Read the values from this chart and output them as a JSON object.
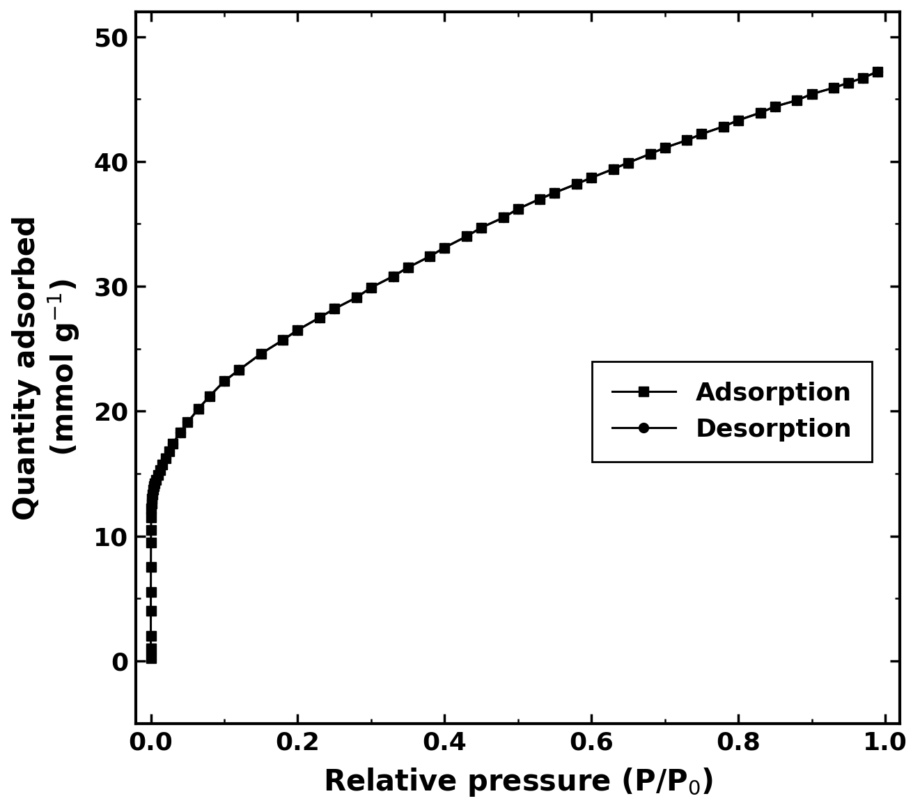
{
  "xlabel": "Relative pressure (P/P$_0$)",
  "ylabel": "Quantity adsorbed\n(mmol g$^{-1}$)",
  "xlim": [
    -0.02,
    1.02
  ],
  "ylim": [
    -5,
    52
  ],
  "xticks": [
    0.0,
    0.2,
    0.4,
    0.6,
    0.8,
    1.0
  ],
  "yticks": [
    0,
    10,
    20,
    30,
    40,
    50
  ],
  "background_color": "#ffffff",
  "line_color": "#000000",
  "adsorption_x": [
    1e-06,
    5e-06,
    1e-05,
    3e-05,
    5e-05,
    0.0001,
    0.0002,
    0.0003,
    0.0005,
    0.0008,
    0.001,
    0.0015,
    0.002,
    0.003,
    0.004,
    0.005,
    0.007,
    0.01,
    0.013,
    0.016,
    0.02,
    0.025,
    0.03,
    0.04,
    0.05,
    0.065,
    0.08,
    0.1,
    0.12,
    0.15,
    0.18,
    0.2,
    0.23,
    0.25,
    0.28,
    0.3,
    0.33,
    0.35,
    0.38,
    0.4,
    0.43,
    0.45,
    0.48,
    0.5,
    0.53,
    0.55,
    0.58,
    0.6,
    0.63,
    0.65,
    0.68,
    0.7,
    0.73,
    0.75,
    0.78,
    0.8,
    0.83,
    0.85,
    0.88,
    0.9,
    0.93,
    0.95,
    0.97,
    0.99
  ],
  "adsorption_y": [
    0.2,
    1.0,
    2.0,
    4.0,
    5.5,
    7.5,
    9.5,
    10.5,
    11.5,
    12.2,
    12.6,
    13.0,
    13.3,
    13.7,
    14.0,
    14.2,
    14.5,
    14.9,
    15.3,
    15.7,
    16.2,
    16.8,
    17.4,
    18.3,
    19.1,
    20.2,
    21.2,
    22.4,
    23.3,
    24.6,
    25.7,
    26.5,
    27.5,
    28.2,
    29.1,
    29.9,
    30.8,
    31.5,
    32.4,
    33.1,
    34.0,
    34.7,
    35.5,
    36.2,
    37.0,
    37.5,
    38.2,
    38.7,
    39.4,
    39.9,
    40.6,
    41.1,
    41.7,
    42.2,
    42.8,
    43.3,
    43.9,
    44.4,
    44.9,
    45.4,
    45.9,
    46.3,
    46.7,
    47.2
  ],
  "desorption_x": [
    0.99,
    0.97,
    0.95,
    0.93,
    0.9,
    0.88,
    0.85,
    0.83,
    0.8,
    0.78,
    0.75,
    0.73,
    0.7,
    0.68,
    0.65,
    0.63,
    0.6,
    0.58,
    0.55,
    0.53,
    0.5,
    0.48,
    0.45,
    0.43,
    0.4,
    0.38,
    0.35,
    0.33,
    0.3,
    0.28,
    0.25,
    0.23,
    0.2,
    0.18,
    0.15,
    0.12,
    0.1,
    0.08,
    0.065,
    0.05,
    0.04,
    0.03,
    0.025,
    0.02
  ],
  "desorption_y": [
    47.2,
    46.7,
    46.3,
    45.9,
    45.4,
    44.9,
    44.4,
    43.9,
    43.3,
    42.8,
    42.2,
    41.7,
    41.1,
    40.6,
    39.9,
    39.4,
    38.7,
    38.2,
    37.5,
    37.0,
    36.2,
    35.5,
    34.7,
    34.0,
    33.1,
    32.4,
    31.5,
    30.8,
    29.9,
    29.1,
    28.2,
    27.5,
    26.5,
    25.7,
    24.6,
    23.3,
    22.4,
    21.2,
    20.2,
    19.1,
    18.3,
    17.4,
    16.8,
    16.2
  ],
  "adsorption_label": "Adsorption",
  "desorption_label": "Desorption",
  "fontsize_ticks": 26,
  "fontsize_labels": 30,
  "fontsize_legend": 26,
  "linewidth": 2.2,
  "markersize_square": 10,
  "markersize_circle": 10,
  "spine_linewidth": 3.0
}
